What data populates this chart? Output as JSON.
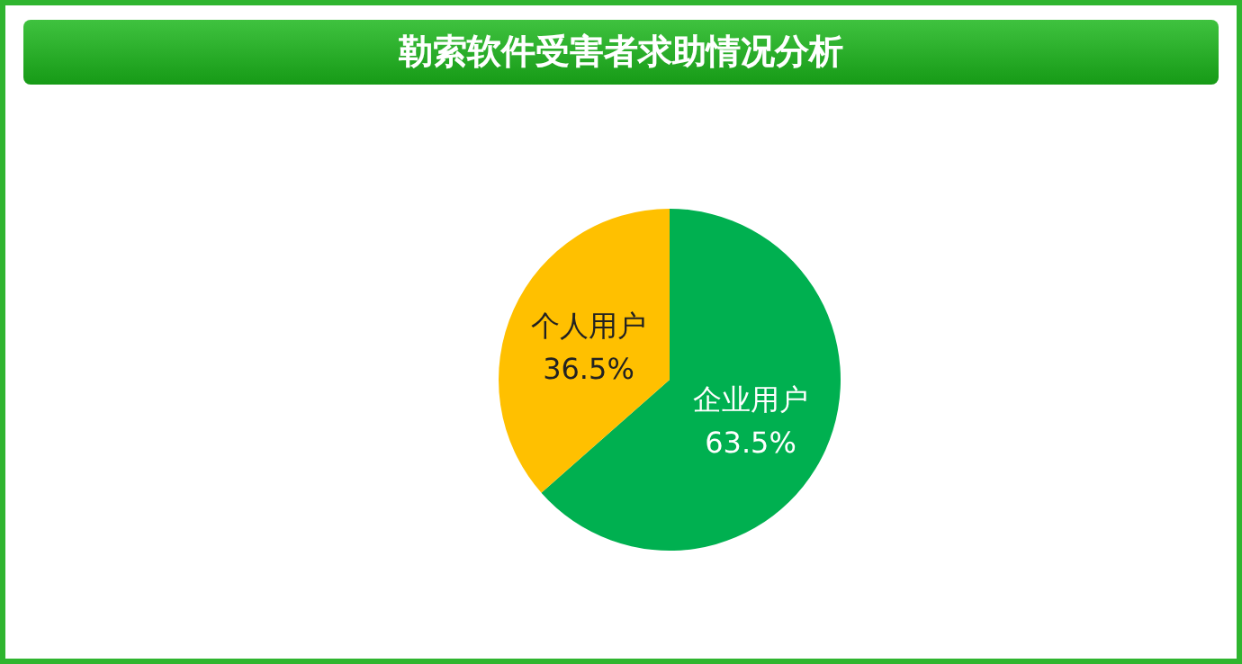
{
  "chart_data": {
    "type": "pie",
    "title": "勒索软件受害者求助情况分析",
    "categories": [
      "企业用户",
      "个人用户"
    ],
    "values": [
      63.5,
      36.5
    ],
    "colors": [
      "#00b050",
      "#ffc000"
    ],
    "value_labels": [
      "63.5%",
      "36.5%"
    ],
    "legend": false
  }
}
